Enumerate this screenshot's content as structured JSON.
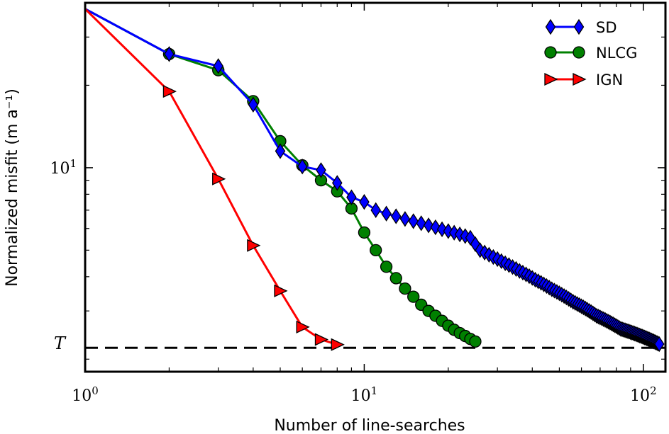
{
  "chart_data": {
    "type": "line",
    "xscale": "log",
    "yscale": "log",
    "xlim": [
      1,
      120
    ],
    "ylim": [
      1.8,
      40
    ],
    "xlabel": "Number of line-searches",
    "ylabel": "Normalized misfit (m a⁻¹)",
    "x_tick_labels": [
      {
        "value": 1,
        "base": "10",
        "exp": "0"
      },
      {
        "value": 10,
        "base": "10",
        "exp": "1"
      },
      {
        "value": 100,
        "base": "10",
        "exp": "2"
      }
    ],
    "y_tick_labels": [
      {
        "value": 10,
        "base": "10",
        "exp": "1"
      }
    ],
    "threshold": {
      "label": "T",
      "value": 2.2,
      "style": "dashed",
      "color": "#000000"
    },
    "legend_position": "top-right",
    "series": [
      {
        "name": "SD",
        "color": "#0000ff",
        "marker": "diamond",
        "x": [
          1,
          2,
          3,
          4,
          5,
          6,
          7,
          8,
          9,
          10,
          11,
          12,
          13,
          14,
          15,
          16,
          17,
          18,
          19,
          20,
          21,
          22,
          23,
          24,
          25,
          26,
          27,
          28,
          29,
          30,
          31,
          32,
          33,
          34,
          35,
          36,
          37,
          38,
          39,
          40,
          41,
          42,
          43,
          44,
          45,
          46,
          47,
          48,
          49,
          50,
          51,
          52,
          53,
          54,
          55,
          56,
          57,
          58,
          59,
          60,
          61,
          62,
          63,
          64,
          65,
          66,
          67,
          68,
          69,
          70,
          71,
          72,
          73,
          74,
          75,
          76,
          77,
          78,
          79,
          80,
          81,
          82,
          83,
          84,
          85,
          86,
          87,
          88,
          89,
          90,
          91,
          92,
          93,
          94,
          95,
          96,
          97,
          98,
          99,
          100,
          101,
          102,
          103,
          104,
          105,
          106,
          107,
          108,
          109,
          110,
          111,
          112,
          113,
          114
        ],
        "y": [
          38,
          26,
          23.5,
          17,
          11.5,
          10.1,
          9.8,
          8.8,
          7.8,
          7.5,
          7.0,
          6.8,
          6.65,
          6.5,
          6.38,
          6.27,
          6.16,
          6.06,
          5.96,
          5.87,
          5.79,
          5.71,
          5.63,
          5.55,
          5.26,
          5.0,
          4.9,
          4.81,
          4.72,
          4.64,
          4.56,
          4.48,
          4.41,
          4.34,
          4.27,
          4.2,
          4.14,
          4.08,
          4.02,
          3.96,
          3.9,
          3.85,
          3.8,
          3.75,
          3.7,
          3.65,
          3.6,
          3.56,
          3.52,
          3.48,
          3.44,
          3.4,
          3.36,
          3.32,
          3.28,
          3.24,
          3.21,
          3.18,
          3.15,
          3.12,
          3.09,
          3.06,
          3.03,
          3.0,
          2.97,
          2.94,
          2.91,
          2.88,
          2.86,
          2.84,
          2.82,
          2.8,
          2.78,
          2.76,
          2.74,
          2.72,
          2.7,
          2.68,
          2.66,
          2.64,
          2.62,
          2.6,
          2.58,
          2.57,
          2.56,
          2.55,
          2.54,
          2.53,
          2.52,
          2.51,
          2.5,
          2.49,
          2.48,
          2.47,
          2.46,
          2.45,
          2.44,
          2.43,
          2.42,
          2.41,
          2.4,
          2.39,
          2.38,
          2.37,
          2.36,
          2.35,
          2.34,
          2.33,
          2.32,
          2.31,
          2.3,
          2.29,
          2.28,
          2.27
        ]
      },
      {
        "name": "NLCG",
        "color": "#008000",
        "marker": "circle",
        "x": [
          1,
          2,
          3,
          4,
          5,
          6,
          7,
          8,
          9,
          10,
          11,
          12,
          13,
          14,
          15,
          16,
          17,
          18,
          19,
          20,
          21,
          22,
          23,
          24,
          25
        ],
        "y": [
          38,
          26,
          22.7,
          17.5,
          12.5,
          10.2,
          9.0,
          8.2,
          7.1,
          5.8,
          5.0,
          4.35,
          3.95,
          3.62,
          3.38,
          3.16,
          3.0,
          2.88,
          2.76,
          2.65,
          2.56,
          2.49,
          2.43,
          2.37,
          2.32
        ]
      },
      {
        "name": "IGN",
        "color": "#ff0000",
        "marker": "triangle-right",
        "x": [
          1,
          2,
          3,
          4,
          5,
          6,
          7,
          8
        ],
        "y": [
          38,
          19,
          9.1,
          5.2,
          3.55,
          2.62,
          2.36,
          2.26
        ]
      }
    ]
  }
}
